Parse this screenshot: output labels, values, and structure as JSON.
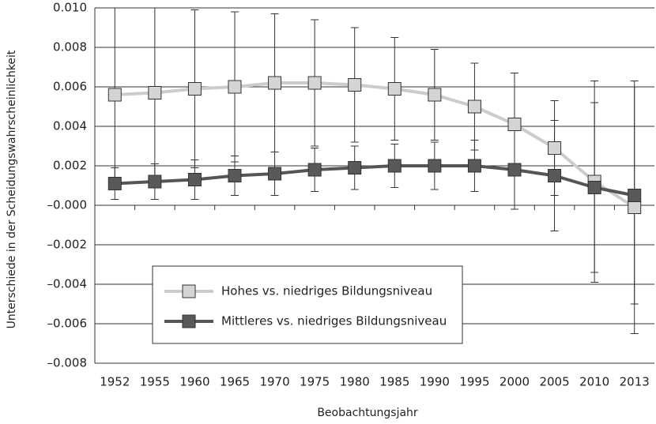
{
  "chart_data": {
    "type": "line",
    "x_label": "Beobachtungsjahr",
    "y_label": "Unterschiede in der Scheidungswahrscheinlichkeit",
    "categories": [
      "1952",
      "1955",
      "1960",
      "1965",
      "1970",
      "1975",
      "1980",
      "1985",
      "1990",
      "1995",
      "2000",
      "2005",
      "2010",
      "2013"
    ],
    "series": [
      {
        "name": "Hohes vs. niedriges Bildungsniveau",
        "color": "#cccccc",
        "marker_color": "#d4d4d4",
        "values": [
          0.0056,
          0.0057,
          0.0059,
          0.006,
          0.0062,
          0.0062,
          0.0061,
          0.0059,
          0.0056,
          0.005,
          0.0041,
          0.0029,
          0.0012,
          -0.0001
        ],
        "errors": [
          0.0044,
          0.0043,
          0.004,
          0.0038,
          0.0035,
          0.0032,
          0.0029,
          0.0026,
          0.0023,
          0.0022,
          0.0026,
          0.0024,
          0.0051,
          0.0064
        ]
      },
      {
        "name": "Mittleres vs. niedriges Bildungsniveau",
        "color": "#555555",
        "marker_color": "#595959",
        "values": [
          0.0011,
          0.0012,
          0.0013,
          0.0015,
          0.0016,
          0.0018,
          0.0019,
          0.002,
          0.002,
          0.002,
          0.0018,
          0.0015,
          0.0009,
          0.0005
        ],
        "errors": [
          0.0008,
          0.0009,
          0.001,
          0.001,
          0.0011,
          0.0011,
          0.0011,
          0.0011,
          0.0012,
          0.0013,
          0.002,
          0.0028,
          0.0043,
          0.0055
        ]
      }
    ],
    "ylim": [
      -0.008,
      0.01
    ],
    "yticks": [
      {
        "value": 0.01,
        "label": "0.010"
      },
      {
        "value": 0.008,
        "label": "0.008"
      },
      {
        "value": 0.006,
        "label": "0.006"
      },
      {
        "value": 0.004,
        "label": "0.004"
      },
      {
        "value": 0.002,
        "label": "0.002"
      },
      {
        "value": 0,
        "label": "–0.000"
      },
      {
        "value": -0.002,
        "label": "–0.002"
      },
      {
        "value": -0.004,
        "label": "–0.004"
      },
      {
        "value": -0.006,
        "label": "–0.006"
      },
      {
        "value": -0.008,
        "label": "–0.008"
      }
    ],
    "grid": true
  }
}
